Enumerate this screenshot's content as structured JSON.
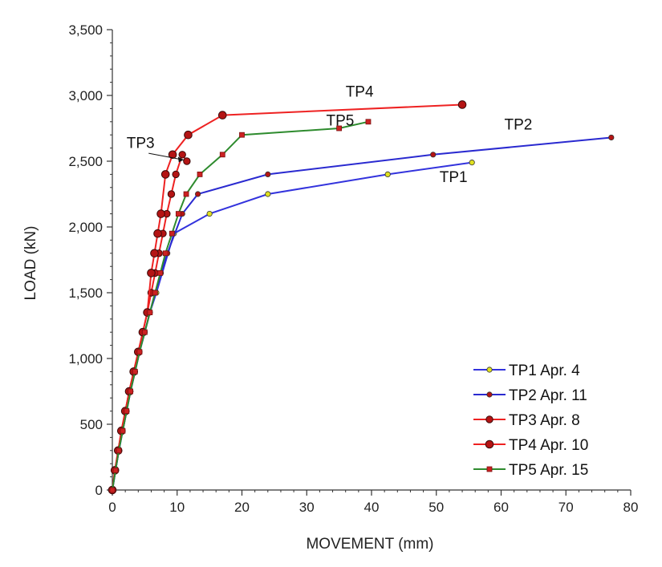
{
  "chart_data": {
    "type": "line",
    "xlabel": "MOVEMENT  (mm)",
    "ylabel": "LOAD (kN)",
    "xlim": [
      0,
      80
    ],
    "ylim": [
      0,
      3500
    ],
    "xticks": [
      0,
      10,
      20,
      30,
      40,
      50,
      60,
      70,
      80
    ],
    "yticks": [
      0,
      500,
      1000,
      1500,
      2000,
      2500,
      3000,
      3500
    ],
    "ytick_labels": [
      "0",
      "500",
      "1,000",
      "1,500",
      "2,000",
      "2,500",
      "3,000",
      "3,500"
    ],
    "grid": false,
    "legend_position": "bottom-right",
    "series": [
      {
        "name": "TP1 Apr. 4",
        "label": "TP1",
        "line_color": "#3333dd",
        "marker_color": "#e0e020",
        "marker": "small-circle",
        "x": [
          0,
          0.5,
          1.0,
          1.6,
          2.2,
          2.8,
          3.5,
          4.2,
          5.0,
          5.8,
          6.8,
          9.5,
          15,
          24,
          42.5,
          55.5
        ],
        "y": [
          0,
          150,
          300,
          450,
          600,
          750,
          900,
          1050,
          1200,
          1350,
          1500,
          1950,
          2100,
          2250,
          2400,
          2490
        ]
      },
      {
        "name": "TP2 Apr. 11",
        "label": "TP2",
        "line_color": "#2a2ad0",
        "marker_color": "#b41414",
        "marker": "small-circle",
        "x": [
          0,
          0.5,
          1.0,
          1.6,
          2.2,
          2.8,
          3.5,
          4.2,
          5.0,
          5.8,
          6.6,
          7.5,
          8.5,
          10.8,
          13.2,
          24,
          49.5,
          77
        ],
        "y": [
          0,
          150,
          300,
          450,
          600,
          750,
          900,
          1050,
          1200,
          1350,
          1500,
          1650,
          1800,
          2100,
          2250,
          2400,
          2550,
          2680
        ]
      },
      {
        "name": "TP3 Apr. 8",
        "label": "TP3",
        "line_color": "#ee2222",
        "marker_color": "#b41414",
        "marker": "circle",
        "x": [
          0,
          0.4,
          0.9,
          1.4,
          2.0,
          2.6,
          3.3,
          4.0,
          4.7,
          5.4,
          6.0,
          6.6,
          7.2,
          7.8,
          8.4,
          9.1,
          9.8,
          10.8,
          11.5
        ],
        "y": [
          0,
          150,
          300,
          450,
          600,
          750,
          900,
          1050,
          1200,
          1350,
          1500,
          1650,
          1800,
          1950,
          2100,
          2250,
          2400,
          2550,
          2500
        ]
      },
      {
        "name": "TP4 Apr. 10",
        "label": "TP4",
        "line_color": "#ee2222",
        "marker_color": "#b41414",
        "marker": "large-circle",
        "x": [
          0,
          0.4,
          0.9,
          1.4,
          2.0,
          2.6,
          3.3,
          4.0,
          4.7,
          5.4,
          6.0,
          6.5,
          7.0,
          7.5,
          8.2,
          9.3,
          11.7,
          17,
          54
        ],
        "y": [
          0,
          150,
          300,
          450,
          600,
          750,
          900,
          1050,
          1200,
          1350,
          1650,
          1800,
          1950,
          2100,
          2400,
          2550,
          2700,
          2850,
          2930
        ]
      },
      {
        "name": "TP5 Apr. 15",
        "label": "TP5",
        "line_color": "#2e8b2e",
        "marker_color": "#cc2222",
        "marker": "small-square",
        "x": [
          0,
          0.5,
          1.0,
          1.6,
          2.2,
          2.8,
          3.5,
          4.2,
          5.0,
          5.8,
          6.6,
          7.4,
          8.2,
          9.2,
          10.2,
          11.4,
          13.5,
          17,
          20,
          35,
          39.5
        ],
        "y": [
          0,
          150,
          300,
          450,
          600,
          750,
          900,
          1050,
          1200,
          1350,
          1500,
          1650,
          1800,
          1950,
          2100,
          2250,
          2400,
          2550,
          2700,
          2750,
          2800
        ]
      }
    ],
    "legend": [
      {
        "label": "TP1 Apr. 4",
        "line_color": "#3333dd",
        "marker_color": "#e0e020"
      },
      {
        "label": "TP2 Apr. 11",
        "line_color": "#2a2ad0",
        "marker_color": "#b41414"
      },
      {
        "label": "TP3 Apr. 8",
        "line_color": "#ee2222",
        "marker_color": "#b41414"
      },
      {
        "label": "TP4 Apr. 10",
        "line_color": "#ee2222",
        "marker_color": "#b41414"
      },
      {
        "label": "TP5 Apr. 15",
        "line_color": "#2e8b2e",
        "marker_color": "#cc2222"
      }
    ]
  }
}
